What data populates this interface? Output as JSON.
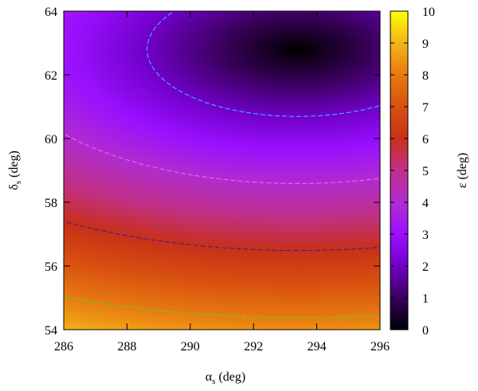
{
  "chart_data": {
    "type": "heatmap",
    "title": "",
    "xlabel": "α",
    "xlabel_sub": "s",
    "xlabel_unit": "(deg)",
    "ylabel": "δ",
    "ylabel_sub": "s",
    "ylabel_unit": "(deg)",
    "colorbar_label": "ε (deg)",
    "xlim": [
      286,
      296
    ],
    "ylim": [
      54,
      64
    ],
    "zlim": [
      0,
      10
    ],
    "x_ticks": [
      "286",
      "288",
      "290",
      "292",
      "294",
      "296"
    ],
    "y_ticks": [
      "54",
      "56",
      "58",
      "60",
      "62",
      "64"
    ],
    "colorbar_ticks": [
      "0",
      "1",
      "2",
      "3",
      "4",
      "5",
      "6",
      "7",
      "8",
      "9",
      "10"
    ],
    "colormap": "black-purple-red-orange-yellow",
    "minimum": {
      "x": 293.4,
      "y": 62.8,
      "value": 0
    },
    "contour_levels": [
      {
        "value": 2,
        "color": "#40c0ff"
      },
      {
        "value": 4,
        "color": "#ff60ff"
      },
      {
        "value": 6,
        "color": "#3020a0"
      },
      {
        "value": 8,
        "color": "#40e040"
      }
    ]
  }
}
